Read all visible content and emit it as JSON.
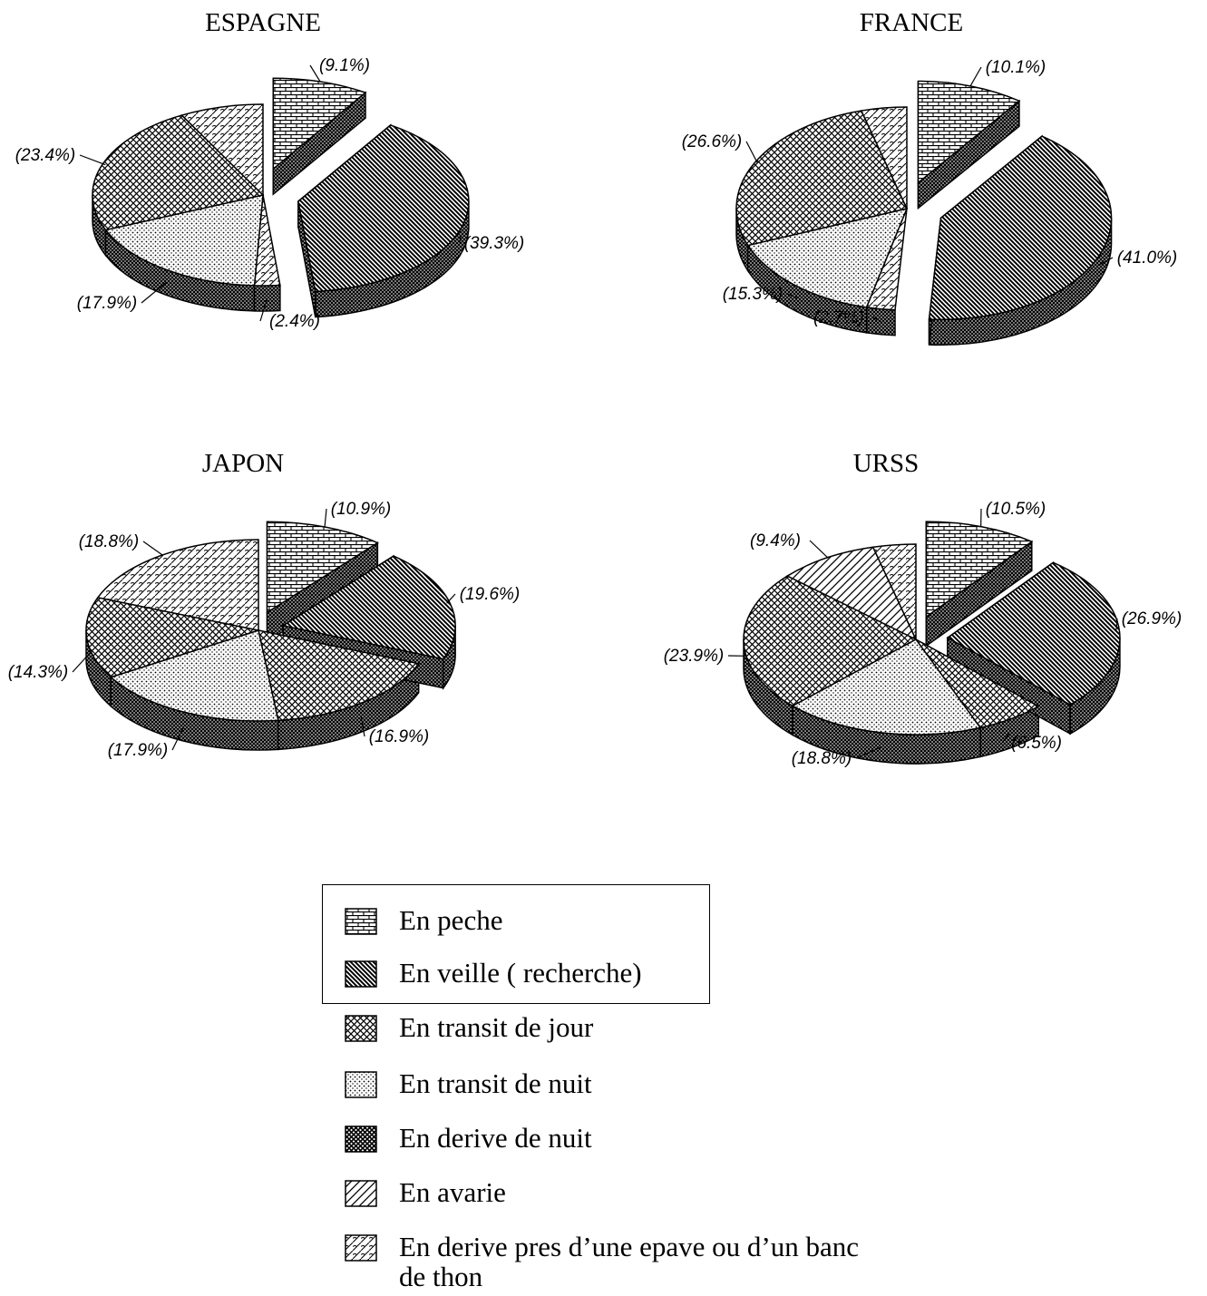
{
  "chart_data": [
    {
      "type": "pie",
      "title": "ESPAGNE",
      "slices": [
        {
          "category": "En peche",
          "value": 9.1,
          "label": "(9.1%)",
          "exploded": true
        },
        {
          "category": "En veille ( recherche)",
          "value": 39.3,
          "label": "(39.3%)",
          "exploded": true
        },
        {
          "category": "En derive pres d’une epave ou d’un banc de thon",
          "value": 2.4,
          "label": "(2.4%)",
          "exploded": false
        },
        {
          "category": "En transit de nuit",
          "value": 17.9,
          "label": "(17.9%)",
          "exploded": false
        },
        {
          "category": "En transit de jour",
          "value": 23.4,
          "label": "(23.4%)",
          "exploded": false
        },
        {
          "category": "En derive pres d’une epave ou d’un banc de thon",
          "value": 7.9,
          "label": "",
          "exploded": false
        }
      ]
    },
    {
      "type": "pie",
      "title": "FRANCE",
      "slices": [
        {
          "category": "En peche",
          "value": 10.1,
          "label": "(10.1%)",
          "exploded": true
        },
        {
          "category": "En veille ( recherche)",
          "value": 41.0,
          "label": "(41.0%)",
          "exploded": true
        },
        {
          "category": "En derive pres d’une epave ou d’un banc de thon",
          "value": 2.7,
          "label": "(2.7%)",
          "exploded": false
        },
        {
          "category": "En transit de nuit",
          "value": 15.3,
          "label": "(15.3%)",
          "exploded": false
        },
        {
          "category": "En transit de jour",
          "value": 26.6,
          "label": "(26.6%)",
          "exploded": false
        },
        {
          "category": "En derive pres d’une epave ou d’un banc de thon",
          "value": 4.3,
          "label": "",
          "exploded": false
        }
      ]
    },
    {
      "type": "pie",
      "title": "JAPON",
      "slices": [
        {
          "category": "En peche",
          "value": 10.9,
          "label": "(10.9%)",
          "exploded": true
        },
        {
          "category": "En veille ( recherche)",
          "value": 19.6,
          "label": "(19.6%)",
          "exploded": true
        },
        {
          "category": "En transit de jour",
          "value": 16.9,
          "label": "(16.9%)",
          "exploded": false
        },
        {
          "category": "En transit de nuit",
          "value": 17.9,
          "label": "(17.9%)",
          "exploded": false
        },
        {
          "category": "En transit de jour",
          "value": 14.3,
          "label": "(14.3%)",
          "exploded": false
        },
        {
          "category": "En derive pres d’une epave ou d’un banc de thon",
          "value": 18.8,
          "label": "(18.8%)",
          "exploded": false
        }
      ]
    },
    {
      "type": "pie",
      "title": "URSS",
      "slices": [
        {
          "category": "En peche",
          "value": 10.5,
          "label": "(10.5%)",
          "exploded": true
        },
        {
          "category": "En veille ( recherche)",
          "value": 26.9,
          "label": "(26.9%)",
          "exploded": true
        },
        {
          "category": "En transit de jour",
          "value": 6.5,
          "label": "(6.5%)",
          "exploded": false
        },
        {
          "category": "En transit de nuit",
          "value": 18.8,
          "label": "(18.8%)",
          "exploded": false
        },
        {
          "category": "En transit de jour",
          "value": 23.9,
          "label": "(23.9%)",
          "exploded": false
        },
        {
          "category": "En avarie",
          "value": 9.4,
          "label": "(9.4%)",
          "exploded": false
        },
        {
          "category": "En derive pres d’une epave ou d’un banc de thon",
          "value": 4.0,
          "label": "",
          "exploded": false
        }
      ]
    }
  ],
  "legend": {
    "items": [
      {
        "label": "En peche",
        "pattern": "bricks"
      },
      {
        "label": "En veille ( recherche)",
        "pattern": "diagonal-dense"
      },
      {
        "label": "En transit de jour",
        "pattern": "crosshatch"
      },
      {
        "label": "En transit de nuit",
        "pattern": "dots"
      },
      {
        "label": "En derive de nuit",
        "pattern": "crosshatch-dark"
      },
      {
        "label": "En avarie",
        "pattern": "diagonal-sparse"
      },
      {
        "label": "En derive pres d’une epave ou d’un banc de thon",
        "pattern": "scales"
      }
    ]
  }
}
